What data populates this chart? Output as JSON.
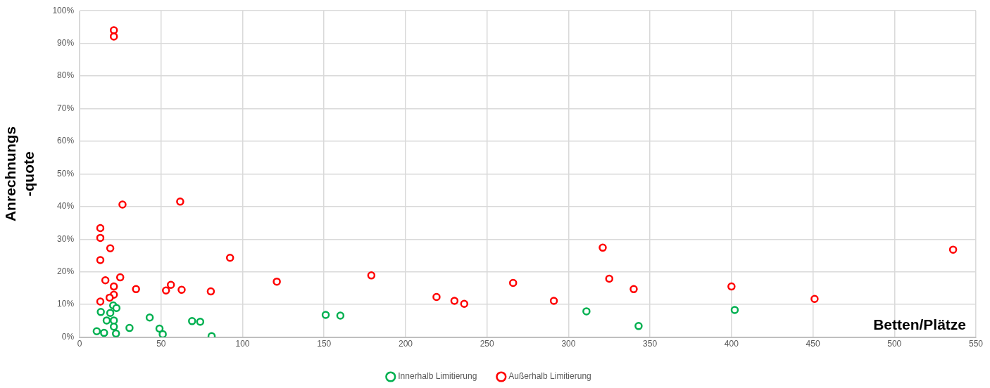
{
  "chart_data": {
    "type": "scatter",
    "xlabel": "Betten/Plätze",
    "ylabel": "Anrechnungs\n-quote",
    "xlim": [
      0,
      550
    ],
    "xticks": [
      0,
      50,
      100,
      150,
      200,
      250,
      300,
      350,
      400,
      450,
      500,
      550
    ],
    "ylim": [
      0,
      100
    ],
    "yticks": [
      {
        "value": 0,
        "label": "0%"
      },
      {
        "value": 10,
        "label": "10%"
      },
      {
        "value": 20,
        "label": "20%"
      },
      {
        "value": 30,
        "label": "30%"
      },
      {
        "value": 40,
        "label": "40%"
      },
      {
        "value": 50,
        "label": "50%"
      },
      {
        "value": 60,
        "label": "60%"
      },
      {
        "value": 70,
        "label": "70%"
      },
      {
        "value": 80,
        "label": "80%"
      },
      {
        "value": 90,
        "label": "90%"
      },
      {
        "value": 100,
        "label": "100%"
      }
    ],
    "grid": true,
    "legend": "bottom",
    "marker": "circle",
    "series": [
      {
        "name": "Innerhalb Limitierung",
        "color": "#00b050",
        "x": [
          10.5,
          13,
          15,
          16.6,
          18.8,
          20.6,
          22.6,
          21,
          21,
          22.3,
          30.6,
          43,
          49,
          51,
          69,
          74,
          81,
          151,
          160,
          311,
          343,
          402
        ],
        "values": [
          1.8,
          7.7,
          1.3,
          5.1,
          7.4,
          9.7,
          8.9,
          5.1,
          3.2,
          1.1,
          2.8,
          6.0,
          2.6,
          0.9,
          4.9,
          4.7,
          0.3,
          6.8,
          6.6,
          7.9,
          3.4,
          8.3
        ]
      },
      {
        "name": "Außerhalb Limitierung",
        "color": "#ff0000",
        "x": [
          21,
          21,
          12.7,
          12.7,
          18.8,
          12.7,
          26.3,
          61.7,
          15.8,
          24.9,
          21,
          21,
          18.4,
          12.7,
          34.6,
          53,
          56,
          62.6,
          80.5,
          92.3,
          121,
          179,
          219,
          230,
          236,
          266,
          291,
          321,
          325,
          340,
          400,
          451,
          536
        ],
        "values": [
          94.0,
          92.1,
          33.4,
          30.4,
          27.2,
          23.6,
          40.6,
          41.5,
          17.4,
          18.3,
          15.5,
          13.0,
          12.1,
          10.9,
          14.7,
          14.3,
          16.0,
          14.5,
          14.0,
          24.3,
          17.0,
          18.9,
          12.3,
          11.1,
          10.2,
          16.6,
          11.1,
          27.4,
          17.9,
          14.7,
          15.5,
          11.7,
          26.8
        ]
      }
    ]
  }
}
